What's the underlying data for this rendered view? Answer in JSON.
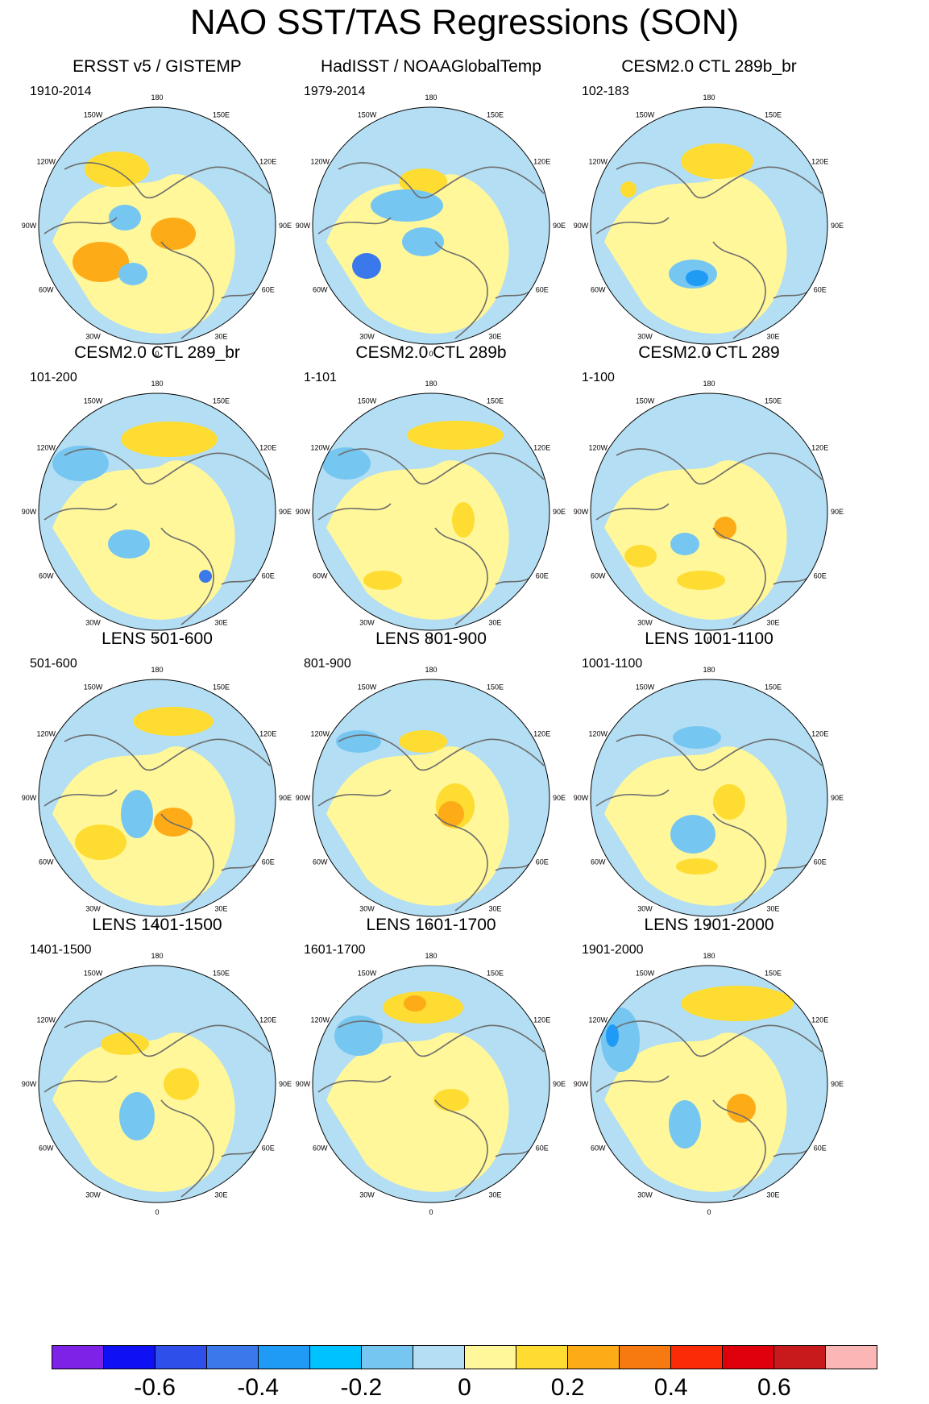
{
  "title": "NAO SST/TAS Regressions (SON)",
  "panels": [
    {
      "title": "ERSST v5 / GISTEMP",
      "period": "1910-2014"
    },
    {
      "title": "HadISST / NOAAGlobalTemp",
      "period": "1979-2014"
    },
    {
      "title": "CESM2.0 CTL 289b_br",
      "period": "102-183"
    },
    {
      "title": "CESM2.0 CTL 289_br",
      "period": "101-200"
    },
    {
      "title": "CESM2.0 CTL 289b",
      "period": "1-101"
    },
    {
      "title": "CESM2.0 CTL 289",
      "period": "1-100"
    },
    {
      "title": "LENS 501-600",
      "period": "501-600"
    },
    {
      "title": "LENS 801-900",
      "period": "801-900"
    },
    {
      "title": "LENS 1001-1100",
      "period": "1001-1100"
    },
    {
      "title": "LENS 1401-1500",
      "period": "1401-1500"
    },
    {
      "title": "LENS 1601-1700",
      "period": "1601-1700"
    },
    {
      "title": "LENS 1901-2000",
      "period": "1901-2000"
    }
  ],
  "longitude_labels": {
    "top": "180",
    "upper_left": "150W",
    "upper_right": "150E",
    "mid_upper_left": "120W",
    "mid_upper_right": "120E",
    "left": "90W",
    "right": "90E",
    "mid_lower_left": "60W",
    "mid_lower_right": "60E",
    "lower_left": "30W",
    "lower_right": "30E",
    "bottom": "0"
  },
  "colorbar": {
    "colors": [
      "#7e22e8",
      "#1010f5",
      "#2f4fea",
      "#3a78ec",
      "#1f9af5",
      "#00c2ff",
      "#76c6f2",
      "#b3def3",
      "#fff799",
      "#fedc32",
      "#fdab17",
      "#f77a10",
      "#fb2b08",
      "#e0000b",
      "#c81a1c",
      "#fdb6b6"
    ],
    "labels": [
      "-0.6",
      "-0.4",
      "-0.2",
      "0",
      "0.2",
      "0.4",
      "0.6"
    ]
  },
  "palette": {
    "land_outline": "#6d6d6d",
    "neg_light": "#b3def3",
    "pos_light": "#fff799"
  }
}
